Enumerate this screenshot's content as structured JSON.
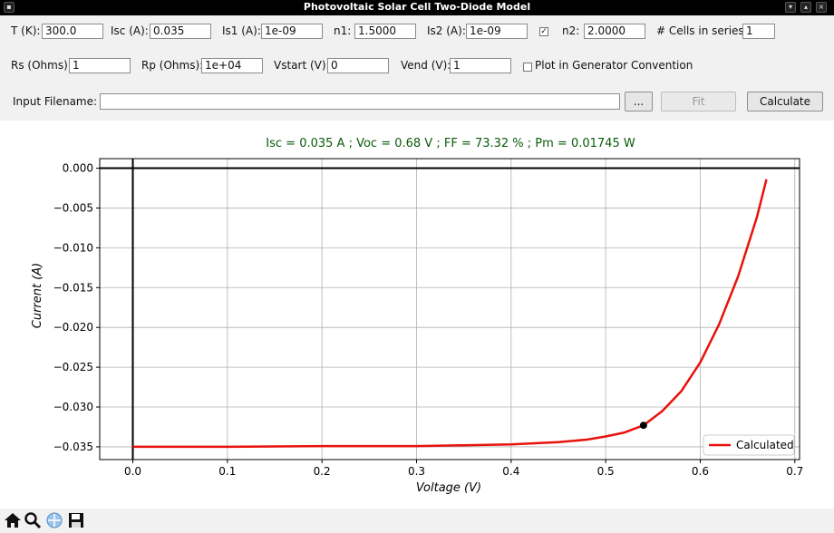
{
  "window": {
    "title": "Photovoltaic Solar Cell Two-Diode Model"
  },
  "params": {
    "t_label": "T (K):",
    "t_value": "300.0",
    "isc_label": "Isc (A):",
    "isc_value": "0.035",
    "is1_label": "Is1 (A):",
    "is1_value": "1e-09",
    "n1_label": "n1:",
    "n1_value": "1.5000",
    "is2_label": "Is2 (A):",
    "is2_value": "1e-09",
    "is2_enabled_mark": "✓",
    "n2_label": "n2:",
    "n2_value": "2.0000",
    "cells_label": "# Cells in series:",
    "cells_value": "1",
    "rs_label": "Rs (Ohms):",
    "rs_value": "1",
    "rp_label": "Rp (Ohms):",
    "rp_value": "1e+04",
    "vstart_label": "Vstart (V):",
    "vstart_value": "0",
    "vend_label": "Vend (V):",
    "vend_value": "1",
    "gen_conv_label": "Plot in Generator Convention",
    "gen_conv_checked": false
  },
  "file": {
    "label": "Input Filename:",
    "value": "",
    "browse_label": "...",
    "fit_label": "Fit",
    "calculate_label": "Calculate"
  },
  "results": {
    "summary": "Isc = 0.035 A ; Voc = 0.68 V ; FF = 73.32 % ; Pm = 0.01745 W",
    "color": "#0b5a0b"
  },
  "chart_data": {
    "type": "line",
    "xlabel": "Voltage (V)",
    "ylabel": "Current (A)",
    "xlim": [
      -0.035,
      0.705
    ],
    "ylim": [
      -0.0366,
      0.0012
    ],
    "xticks": [
      0.0,
      0.1,
      0.2,
      0.3,
      0.4,
      0.5,
      0.6,
      0.7
    ],
    "xtick_labels": [
      "0.0",
      "0.1",
      "0.2",
      "0.3",
      "0.4",
      "0.5",
      "0.6",
      "0.7"
    ],
    "yticks": [
      0.0,
      -0.005,
      -0.01,
      -0.015,
      -0.02,
      -0.025,
      -0.03,
      -0.035
    ],
    "ytick_labels": [
      "0.000",
      "−0.005",
      "−0.010",
      "−0.015",
      "−0.020",
      "−0.025",
      "−0.030",
      "−0.035"
    ],
    "grid": true,
    "legend_position": "bottom-right",
    "series": [
      {
        "name": "Calculated",
        "color": "#e8120c",
        "x": [
          0.0,
          0.1,
          0.2,
          0.3,
          0.35,
          0.4,
          0.45,
          0.48,
          0.5,
          0.52,
          0.54,
          0.56,
          0.58,
          0.6,
          0.62,
          0.64,
          0.66,
          0.67
        ],
        "y": [
          -0.035,
          -0.035,
          -0.0349,
          -0.0349,
          -0.0348,
          -0.0347,
          -0.0344,
          -0.0341,
          -0.0337,
          -0.0332,
          -0.0323,
          -0.0305,
          -0.028,
          -0.0244,
          -0.0196,
          -0.0136,
          -0.0061,
          -0.0014
        ]
      }
    ],
    "max_power_point": {
      "x": 0.54,
      "y": -0.0323,
      "color": "#000000"
    }
  },
  "toolbar": {
    "home_icon": "home-icon",
    "zoom_icon": "zoom-icon",
    "pan_icon": "pan-icon",
    "save_icon": "save-icon"
  }
}
